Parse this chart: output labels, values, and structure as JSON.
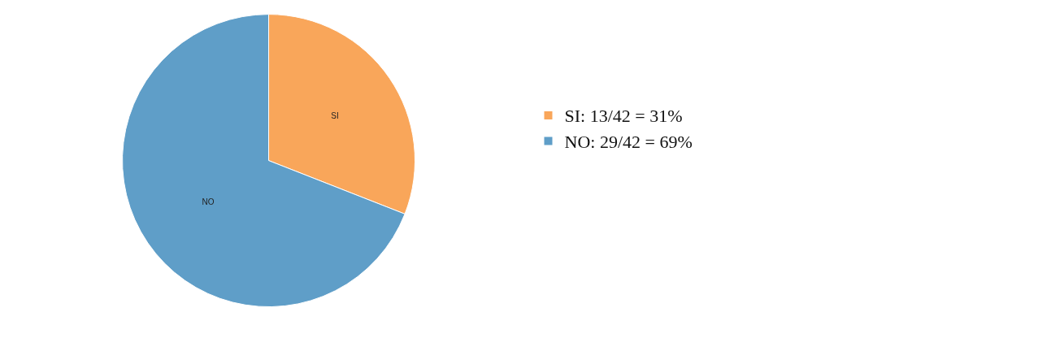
{
  "chart_data": {
    "type": "pie",
    "categories": [
      "SI: 13/42 = 31%",
      "NO: 29/42 = 69%"
    ],
    "values": [
      13,
      29
    ],
    "value_labels": [
      "SI",
      "NO"
    ],
    "colors": [
      "#f9a65a",
      "#5f9ec8"
    ],
    "legend": "right"
  }
}
